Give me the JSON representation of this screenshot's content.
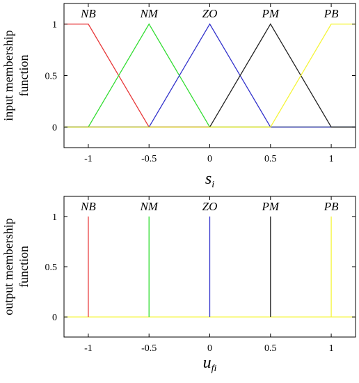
{
  "chart_data": [
    {
      "type": "line",
      "title": "",
      "xlabel": "s",
      "xlabel_subscript": "i",
      "ylabel_lines": [
        "input membership",
        "function"
      ],
      "xlim": [
        -1.2,
        1.2
      ],
      "ylim": [
        -0.2,
        1.2
      ],
      "xticks": [
        "-1",
        "-0.5",
        "0",
        "0.5",
        "1"
      ],
      "xtick_values": [
        -1,
        -0.5,
        0,
        0.5,
        1
      ],
      "yticks": [
        "0",
        "0.5",
        "1"
      ],
      "ytick_values": [
        0,
        0.5,
        1
      ],
      "grid": false,
      "series": [
        {
          "name": "NB",
          "color": "#e8393a",
          "x": [
            -1.2,
            -1.0,
            -0.5,
            1.2
          ],
          "y": [
            1,
            1,
            0,
            0
          ],
          "label_x": -1.0
        },
        {
          "name": "NM",
          "color": "#33dd33",
          "x": [
            -1.2,
            -1.0,
            -0.5,
            0.0,
            1.2
          ],
          "y": [
            0,
            0,
            1,
            0,
            0
          ],
          "label_x": -0.5
        },
        {
          "name": "ZO",
          "color": "#3333cc",
          "x": [
            -1.2,
            -0.5,
            0.0,
            0.5,
            1.2
          ],
          "y": [
            0,
            0,
            1,
            0,
            0
          ],
          "label_x": 0.0
        },
        {
          "name": "PM",
          "color": "#222222",
          "x": [
            -1.2,
            0.0,
            0.5,
            1.0,
            1.2
          ],
          "y": [
            0,
            0,
            1,
            0,
            0
          ],
          "label_x": 0.5
        },
        {
          "name": "PB",
          "color": "#f5f53a",
          "x": [
            -1.2,
            0.5,
            1.0,
            1.2
          ],
          "y": [
            0,
            0,
            1,
            1
          ],
          "label_x": 1.0
        }
      ]
    },
    {
      "type": "line",
      "title": "",
      "xlabel": "u",
      "xlabel_subscript": "fi",
      "ylabel_lines": [
        "output membership",
        "function"
      ],
      "xlim": [
        -1.2,
        1.2
      ],
      "ylim": [
        -0.2,
        1.2
      ],
      "xticks": [
        "-1",
        "-0.5",
        "0",
        "0.5",
        "1"
      ],
      "xtick_values": [
        -1,
        -0.5,
        0,
        0.5,
        1
      ],
      "yticks": [
        "0",
        "0.5",
        "1"
      ],
      "ytick_values": [
        0,
        0.5,
        1
      ],
      "grid": false,
      "series": [
        {
          "name": "NB",
          "color": "#e8393a",
          "x": [
            -1.0,
            -1.0
          ],
          "y": [
            0,
            1
          ],
          "label_x": -1.0
        },
        {
          "name": "NM",
          "color": "#33dd33",
          "x": [
            -0.5,
            -0.5
          ],
          "y": [
            0,
            1
          ],
          "label_x": -0.5
        },
        {
          "name": "ZO",
          "color": "#3333cc",
          "x": [
            0.0,
            0.0
          ],
          "y": [
            0,
            1
          ],
          "label_x": 0.0
        },
        {
          "name": "PM",
          "color": "#222222",
          "x": [
            0.5,
            0.5
          ],
          "y": [
            0,
            1
          ],
          "label_x": 0.5
        },
        {
          "name": "PB",
          "color": "#f5f53a",
          "x": [
            1.0,
            1.0
          ],
          "y": [
            0,
            1
          ],
          "label_x": 1.0
        }
      ],
      "baseline": {
        "color": "#f5f53a",
        "x": [
          -1.2,
          1.2
        ],
        "y": [
          0,
          0
        ]
      }
    }
  ]
}
